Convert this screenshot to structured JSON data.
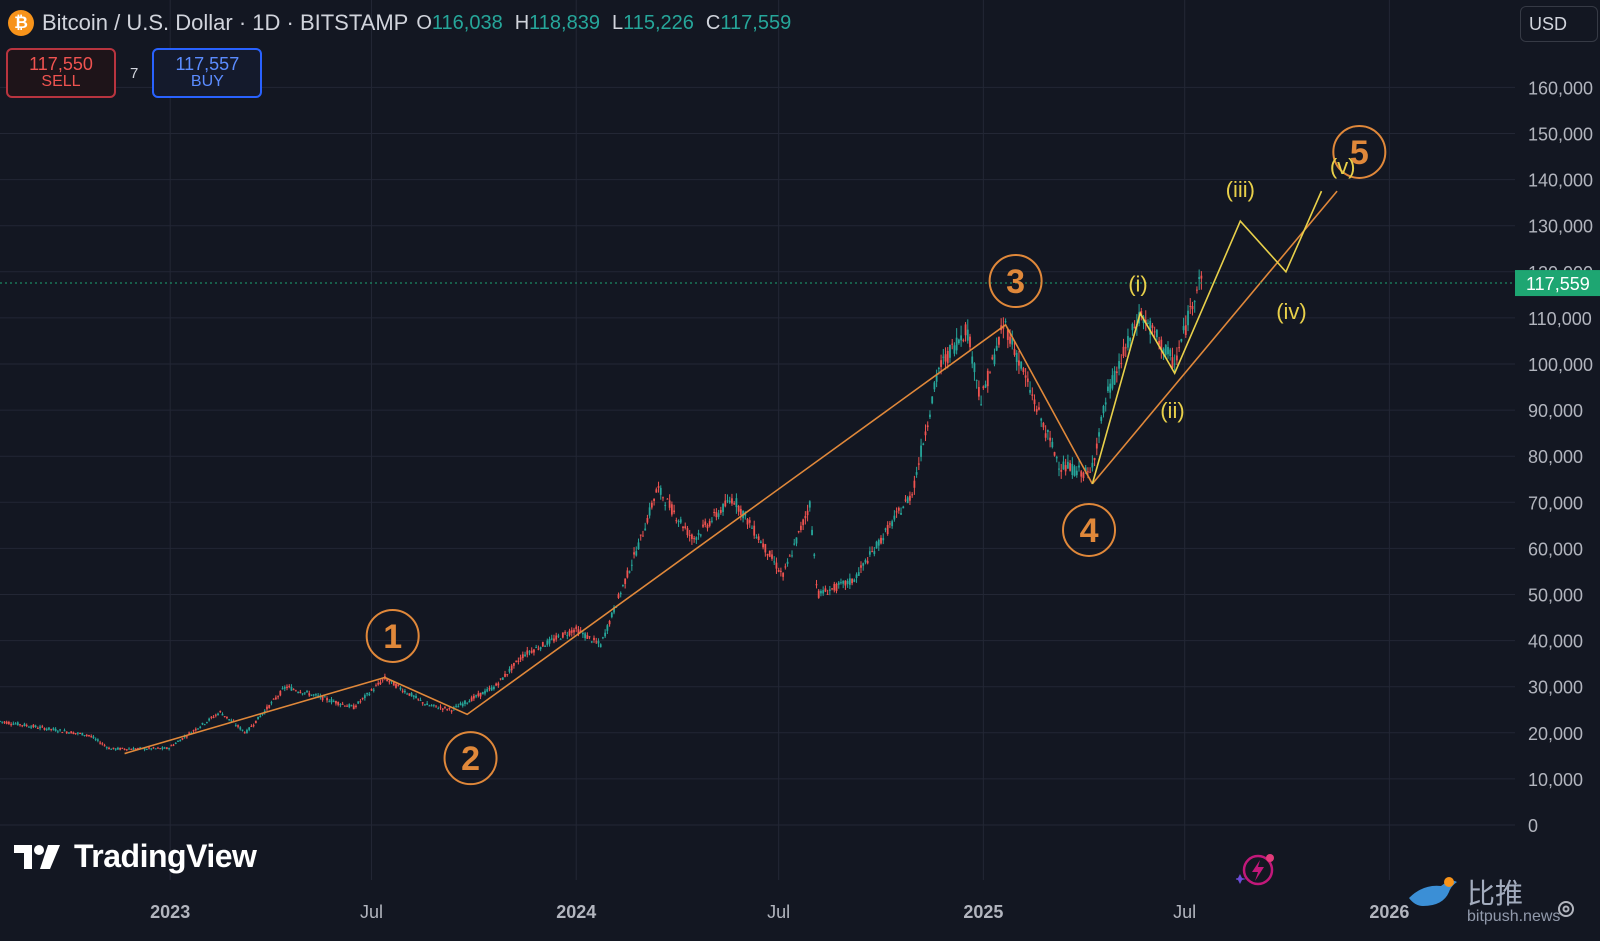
{
  "header": {
    "coin_icon": "bitcoin-icon",
    "title": "Bitcoin / U.S. Dollar · 1D · BITSTAMP",
    "ohlc": [
      {
        "key": "O",
        "value": "116,038"
      },
      {
        "key": "H",
        "value": "118,839"
      },
      {
        "key": "L",
        "value": "115,226"
      },
      {
        "key": "C",
        "value": "117,559"
      }
    ]
  },
  "trade": {
    "sell_price": "117,550",
    "sell_label": "SELL",
    "spread": "7",
    "buy_price": "117,557",
    "buy_label": "BUY"
  },
  "currency": "USD",
  "branding": {
    "logo_text": "TradingView",
    "watermark_cn": "比推",
    "watermark_site": "bitpush.news"
  },
  "colors": {
    "background": "#131722",
    "grid": "#232735",
    "up": "#26a69a",
    "down": "#ef5350",
    "wave_line": "#e0883a",
    "subwave": "#e8d04a",
    "price_tag": "#1ea672"
  },
  "chart_data": {
    "type": "candlestick",
    "title": "Bitcoin / U.S. Dollar · 1D · BITSTAMP",
    "x_ticks": [
      "2023",
      "Jul",
      "2024",
      "Jul",
      "2025",
      "Jul",
      "2026"
    ],
    "y_ticks": [
      "0",
      "10,000",
      "20,000",
      "30,000",
      "40,000",
      "50,000",
      "60,000",
      "70,000",
      "80,000",
      "90,000",
      "100,000",
      "110,000",
      "120,000",
      "130,000",
      "140,000",
      "150,000",
      "160,000"
    ],
    "ylim": [
      0,
      165000
    ],
    "x_range": [
      "2022-08-01",
      "2026-03-01"
    ],
    "last_price": 117559,
    "last_price_label": "117,559",
    "price_path": [
      {
        "x": "2022-08-01",
        "y": 22500
      },
      {
        "x": "2022-09-10",
        "y": 21000
      },
      {
        "x": "2022-10-20",
        "y": 19500
      },
      {
        "x": "2022-11-08",
        "y": 16500
      },
      {
        "x": "2022-12-30",
        "y": 16600
      },
      {
        "x": "2023-02-15",
        "y": 24500
      },
      {
        "x": "2023-03-10",
        "y": 20000
      },
      {
        "x": "2023-04-15",
        "y": 30000
      },
      {
        "x": "2023-06-15",
        "y": 25500
      },
      {
        "x": "2023-07-13",
        "y": 31800
      },
      {
        "x": "2023-08-20",
        "y": 26000
      },
      {
        "x": "2023-09-11",
        "y": 25000
      },
      {
        "x": "2023-10-20",
        "y": 30000
      },
      {
        "x": "2023-11-15",
        "y": 37000
      },
      {
        "x": "2023-12-31",
        "y": 42500
      },
      {
        "x": "2024-01-23",
        "y": 39000
      },
      {
        "x": "2024-02-28",
        "y": 62000
      },
      {
        "x": "2024-03-14",
        "y": 73000
      },
      {
        "x": "2024-04-15",
        "y": 62000
      },
      {
        "x": "2024-05-21",
        "y": 71000
      },
      {
        "x": "2024-07-05",
        "y": 54000
      },
      {
        "x": "2024-07-29",
        "y": 69500
      },
      {
        "x": "2024-08-05",
        "y": 50000
      },
      {
        "x": "2024-09-06",
        "y": 53000
      },
      {
        "x": "2024-10-29",
        "y": 72000
      },
      {
        "x": "2024-11-22",
        "y": 99000
      },
      {
        "x": "2024-12-17",
        "y": 108000
      },
      {
        "x": "2024-12-30",
        "y": 92000
      },
      {
        "x": "2025-01-20",
        "y": 109000
      },
      {
        "x": "2025-02-25",
        "y": 86000
      },
      {
        "x": "2025-03-11",
        "y": 78000
      },
      {
        "x": "2025-04-07",
        "y": 76000
      },
      {
        "x": "2025-04-22",
        "y": 93000
      },
      {
        "x": "2025-05-22",
        "y": 111000
      },
      {
        "x": "2025-06-22",
        "y": 100000
      },
      {
        "x": "2025-07-03",
        "y": 109000
      },
      {
        "x": "2025-07-14",
        "y": 119000
      },
      {
        "x": "2025-07-16",
        "y": 117559
      }
    ],
    "wave_lines": [
      {
        "name": "main",
        "color": "#e0883a",
        "points": [
          {
            "x": "2022-11-21",
            "y": 15500
          },
          {
            "x": "2023-07-13",
            "y": 32000
          },
          {
            "x": "2023-09-25",
            "y": 24000
          },
          {
            "x": "2025-01-21",
            "y": 108500
          },
          {
            "x": "2025-04-09",
            "y": 74000
          }
        ]
      },
      {
        "name": "support",
        "color": "#e0883a",
        "points": [
          {
            "x": "2025-04-09",
            "y": 74000
          },
          {
            "x": "2025-11-15",
            "y": 137500
          }
        ]
      },
      {
        "name": "subwave",
        "color": "#e8d04a",
        "points": [
          {
            "x": "2025-04-09",
            "y": 74000
          },
          {
            "x": "2025-05-22",
            "y": 111000
          },
          {
            "x": "2025-06-22",
            "y": 98000
          },
          {
            "x": "2025-08-20",
            "y": 131000
          },
          {
            "x": "2025-09-30",
            "y": 120000
          },
          {
            "x": "2025-11-01",
            "y": 137500
          }
        ]
      }
    ],
    "annotations": [
      {
        "label": "1",
        "x": "2023-07-20",
        "y": 41000,
        "style": "circle"
      },
      {
        "label": "2",
        "x": "2023-09-28",
        "y": 14500,
        "style": "circle"
      },
      {
        "label": "3",
        "x": "2025-01-30",
        "y": 118000,
        "style": "circle"
      },
      {
        "label": "4",
        "x": "2025-04-06",
        "y": 64000,
        "style": "circle"
      },
      {
        "label": "5",
        "x": "2025-12-05",
        "y": 146000,
        "style": "circle"
      },
      {
        "label": "(i)",
        "x": "2025-05-20",
        "y": 117500,
        "style": "text"
      },
      {
        "label": "(ii)",
        "x": "2025-06-20",
        "y": 90000,
        "style": "text"
      },
      {
        "label": "(iii)",
        "x": "2025-08-20",
        "y": 138000,
        "style": "text"
      },
      {
        "label": "(iv)",
        "x": "2025-10-05",
        "y": 111500,
        "style": "text"
      },
      {
        "label": "(v)",
        "x": "2025-11-20",
        "y": 143000,
        "style": "text"
      }
    ]
  }
}
